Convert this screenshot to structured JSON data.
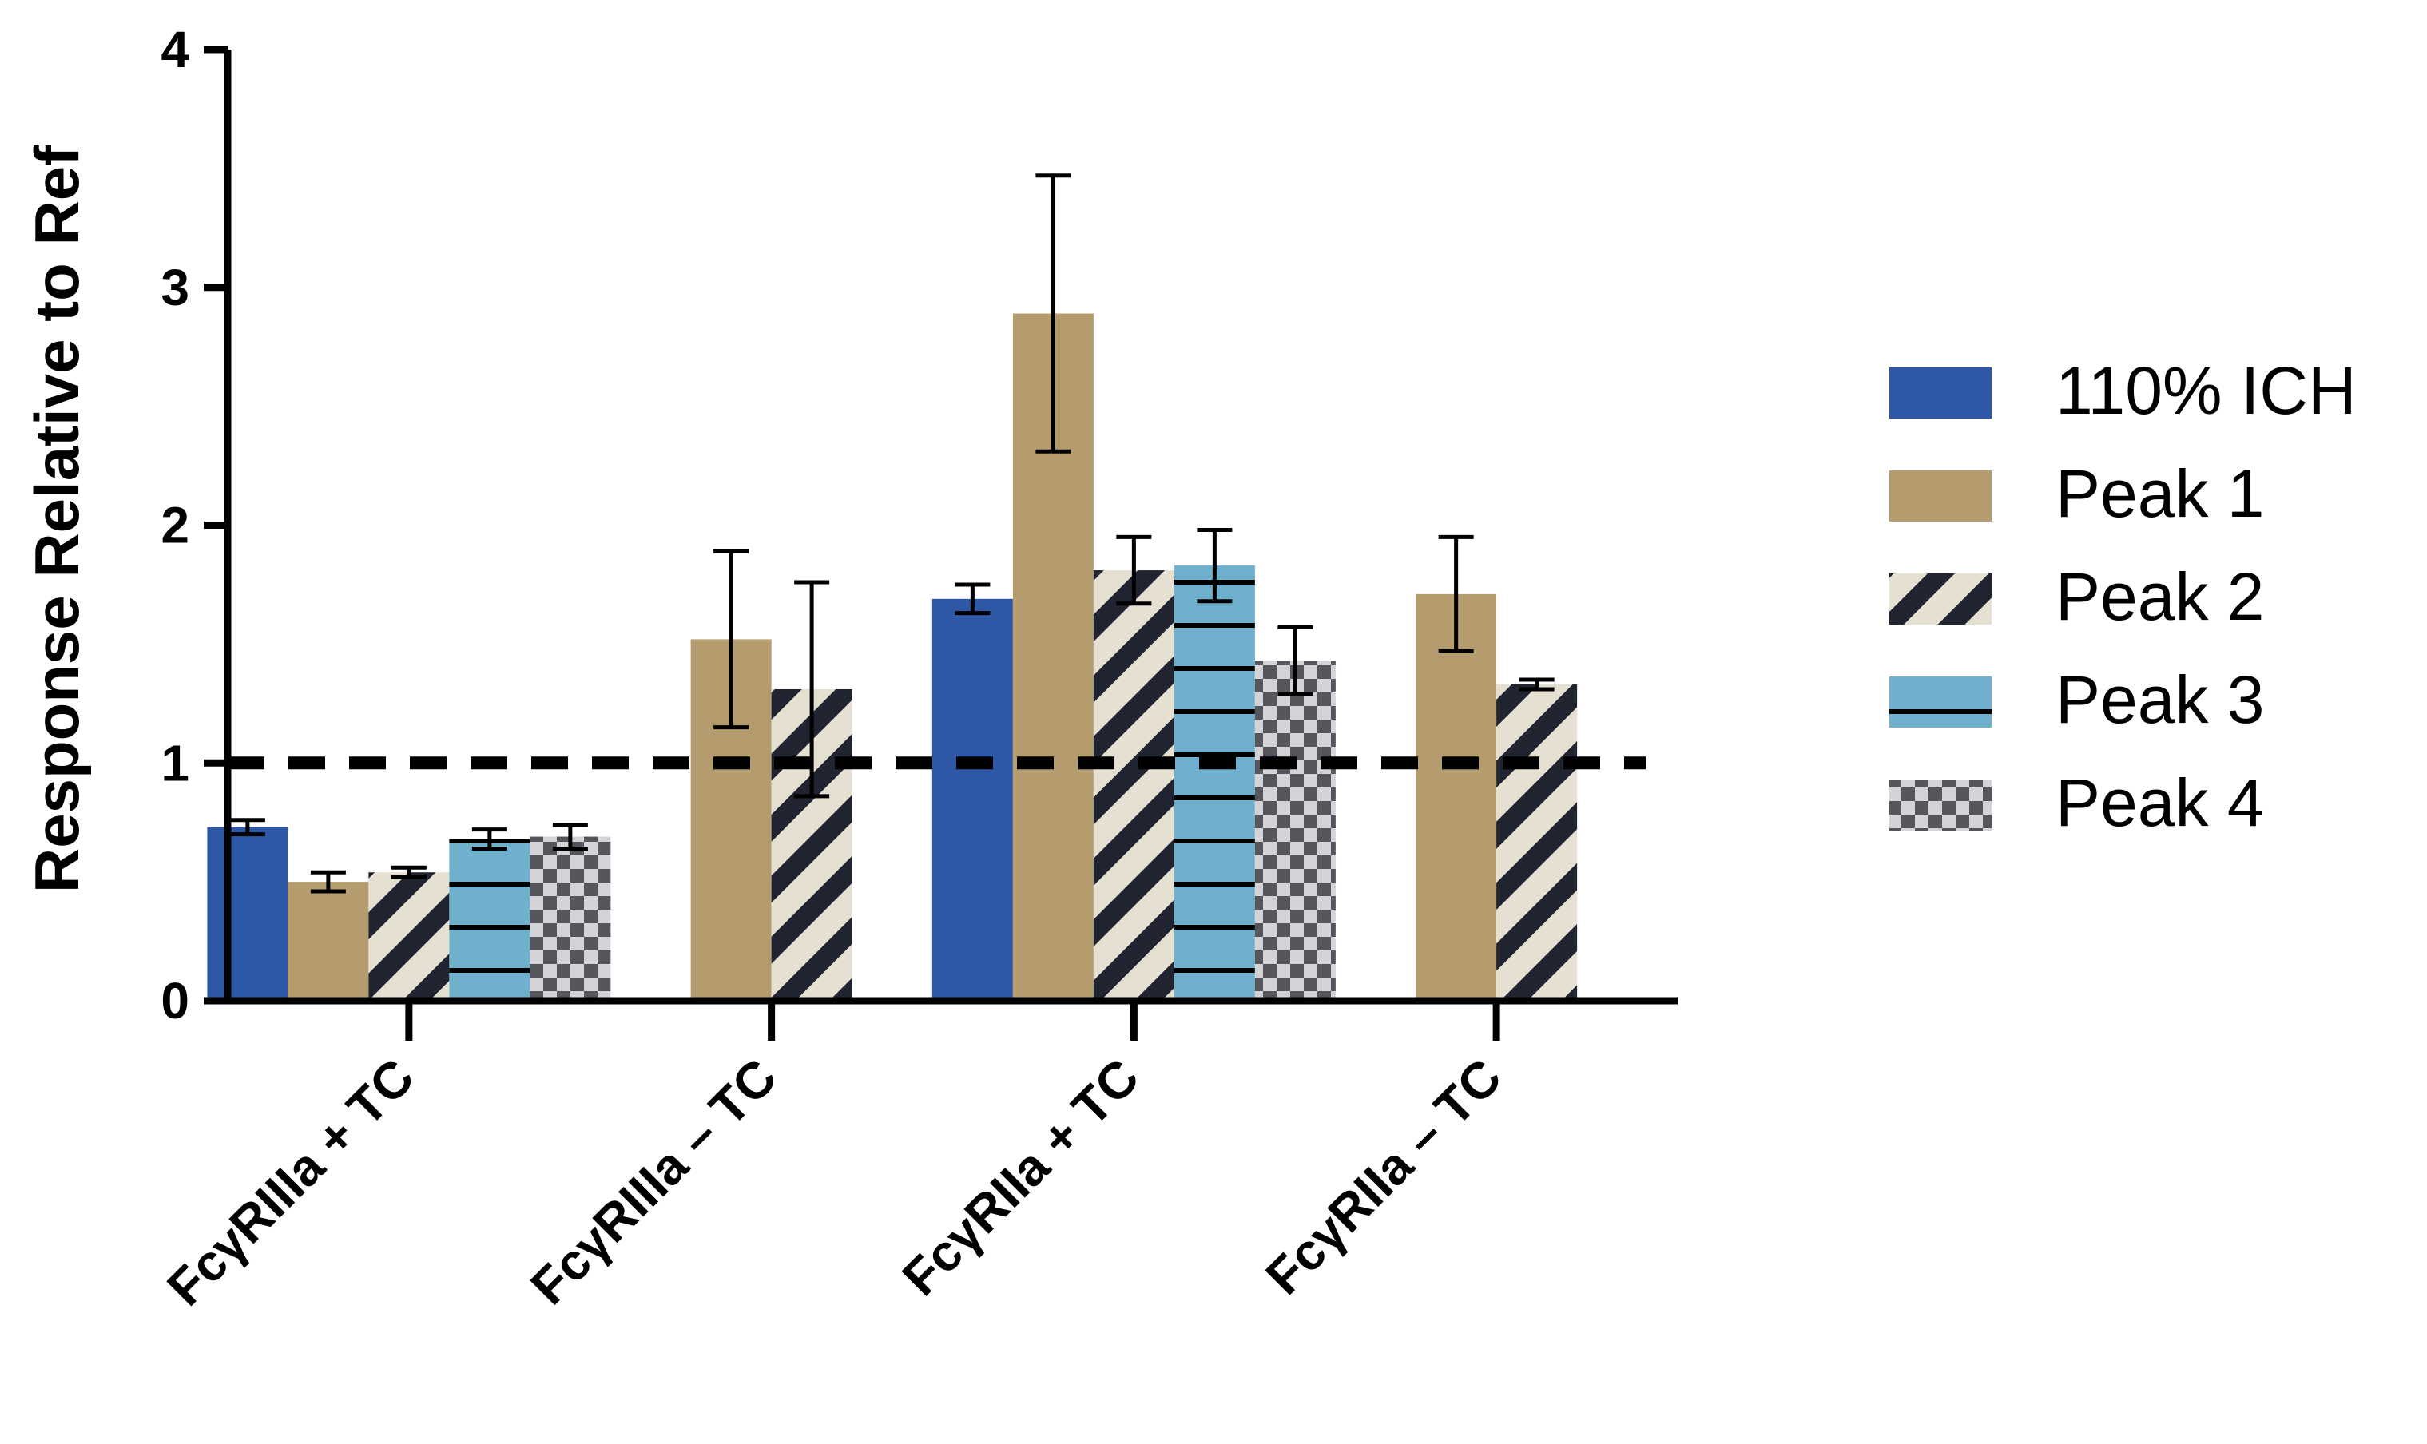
{
  "chart_data": {
    "type": "bar",
    "title": "",
    "xlabel": "",
    "ylabel": "Response Relative to Ref",
    "ylim": [
      0,
      4
    ],
    "yticks": [
      0,
      1,
      2,
      3,
      4
    ],
    "categories": [
      "FcγRIIIa + TC",
      "FcγRIIIa – TC",
      "FcγRIIa + TC",
      "FcγRIIa – TC"
    ],
    "reference_line": {
      "y": 1,
      "style": "dashed"
    },
    "legend_position": "right",
    "series": [
      {
        "name": "110% ICH",
        "pattern": "solid",
        "color": "#2E58A6",
        "values": [
          0.73,
          null,
          1.69,
          null
        ],
        "errors": [
          0.03,
          null,
          0.06,
          null
        ]
      },
      {
        "name": "Peak 1",
        "pattern": "solid",
        "color": "#B49C6E",
        "values": [
          0.5,
          1.52,
          2.89,
          1.71
        ],
        "errors": [
          0.04,
          0.37,
          0.58,
          0.24
        ]
      },
      {
        "name": "Peak 2",
        "pattern": "diagonal-stripes",
        "color": "#E6E0D3",
        "stripe_color": "#1F2430",
        "values": [
          0.54,
          1.31,
          1.81,
          1.33
        ],
        "errors": [
          0.02,
          0.45,
          0.14,
          0.02
        ]
      },
      {
        "name": "Peak 3",
        "pattern": "horizontal-lines",
        "color": "#6FB1CC",
        "stripe_color": "#000000",
        "values": [
          0.68,
          null,
          1.83,
          null
        ],
        "errors": [
          0.04,
          null,
          0.15,
          null
        ]
      },
      {
        "name": "Peak 4",
        "pattern": "checker",
        "color": "#D3D3D8",
        "stripe_color": "#55565C",
        "values": [
          0.69,
          null,
          1.43,
          null
        ],
        "errors": [
          0.05,
          null,
          0.14,
          null
        ]
      }
    ]
  }
}
